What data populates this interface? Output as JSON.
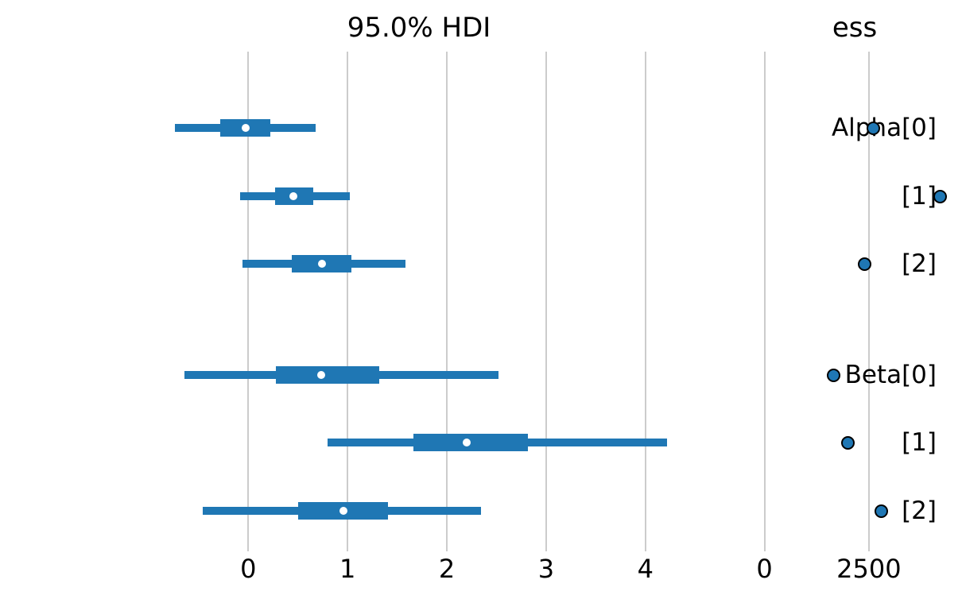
{
  "chart_data": {
    "type": "forest",
    "description": "ArviZ-style forest plot with two panels: 95% HDI credible intervals and effective sample size (ess) per parameter",
    "panels": [
      {
        "title": "95.0% HDI",
        "tick_labels": [
          "0",
          "1",
          "2",
          "3",
          "4"
        ],
        "tick_values": [
          0,
          1,
          2,
          3,
          4
        ],
        "xlim": [
          -0.98,
          4.45
        ],
        "grid": true,
        "legend": "none"
      },
      {
        "title": "ess",
        "tick_labels": [
          "0",
          "2500"
        ],
        "tick_values": [
          0,
          2500
        ],
        "xlim": [
          -600,
          4500
        ],
        "grid": true,
        "legend": "none"
      }
    ],
    "rows": [
      {
        "label": "Alpha[0]",
        "hdi_low": -0.74,
        "q25": -0.28,
        "median": -0.03,
        "q75": 0.22,
        "hdi_high": 0.68,
        "ess": 2600
      },
      {
        "label": "[1]",
        "hdi_low": -0.08,
        "q25": 0.27,
        "median": 0.45,
        "q75": 0.65,
        "hdi_high": 1.02,
        "ess": 4200
      },
      {
        "label": "[2]",
        "hdi_low": -0.06,
        "q25": 0.44,
        "median": 0.74,
        "q75": 1.04,
        "hdi_high": 1.58,
        "ess": 2400
      },
      {
        "label": "Beta[0]",
        "hdi_low": -0.64,
        "q25": 0.28,
        "median": 0.73,
        "q75": 1.32,
        "hdi_high": 2.52,
        "ess": 1650
      },
      {
        "label": "[1]",
        "hdi_low": 0.8,
        "q25": 1.66,
        "median": 2.2,
        "q75": 2.82,
        "hdi_high": 4.22,
        "ess": 2000
      },
      {
        "label": "[2]",
        "hdi_low": -0.46,
        "q25": 0.5,
        "median": 0.96,
        "q75": 1.41,
        "hdi_high": 2.34,
        "ess": 2800
      }
    ],
    "colors": {
      "interval": "#1f77b4",
      "median_marker": "#ffffff",
      "ess_marker_fill": "#1f77b4",
      "ess_marker_edge": "#000000",
      "gridline": "#cccccc",
      "text": "#000000"
    }
  }
}
